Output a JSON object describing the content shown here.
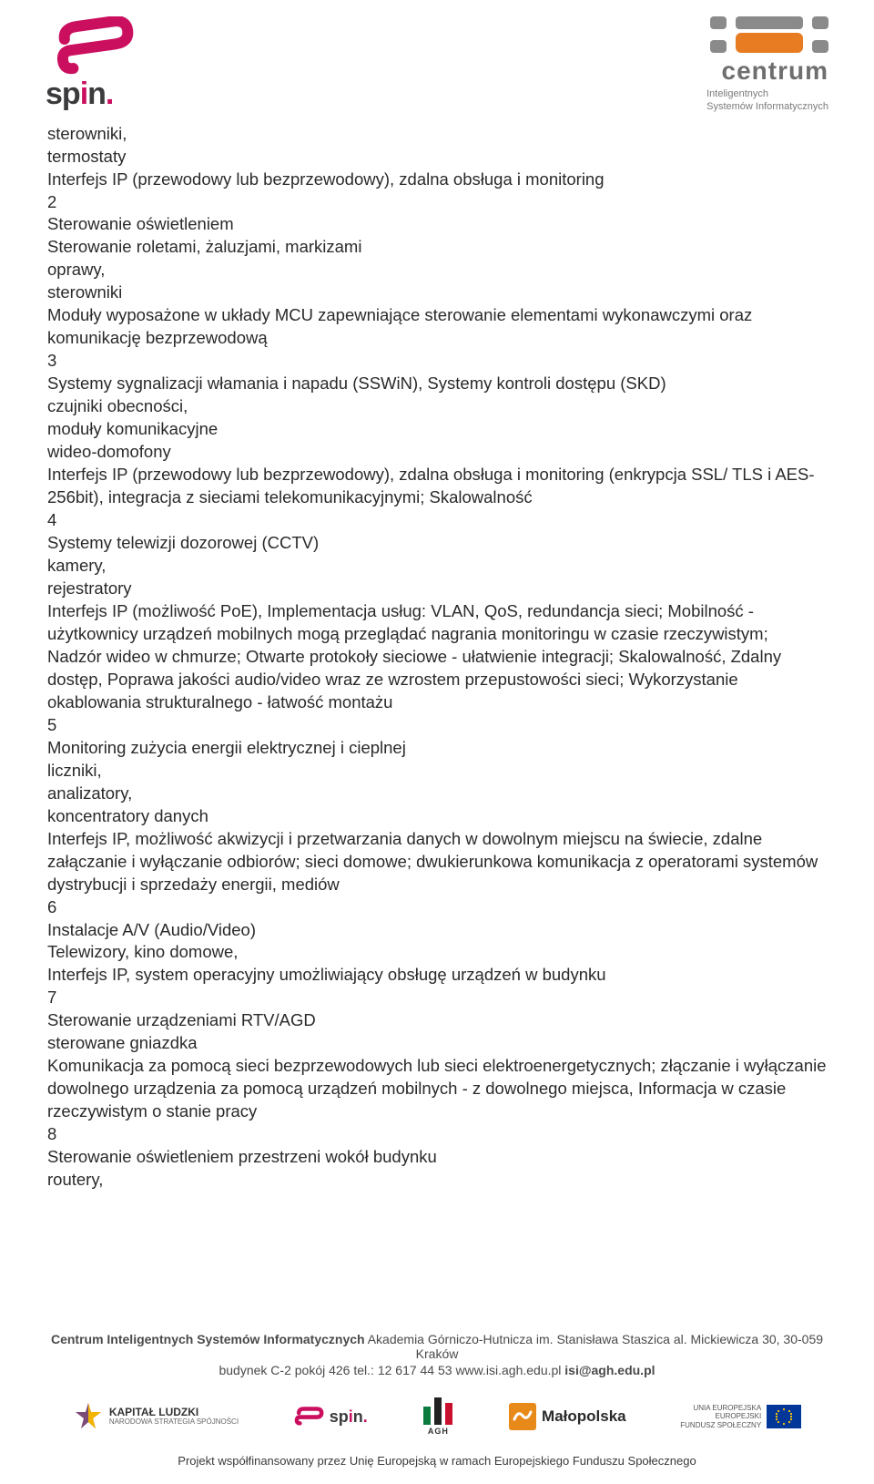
{
  "header": {
    "spin_brand": "spin.",
    "spin_colors": {
      "pink": "#cb0f5f",
      "gray": "#3b3b3d"
    },
    "centrum_brand": "centrum",
    "centrum_sub_line1": "Inteligentnych",
    "centrum_sub_line2": "Systemów Informatycznych",
    "centrum_colors": {
      "orange": "#e77c22",
      "gray": "#8a8a8a"
    }
  },
  "body": {
    "lines": [
      "sterowniki,",
      "termostaty",
      "Interfejs IP (przewodowy lub bezprzewodowy), zdalna obsługa i monitoring",
      "2",
      "Sterowanie oświetleniem",
      "Sterowanie roletami, żaluzjami, markizami",
      "oprawy,",
      "sterowniki",
      "Moduły wyposażone w układy MCU zapewniające sterowanie elementami wykonawczymi oraz komunikację bezprzewodową",
      "3",
      "Systemy sygnalizacji włamania i napadu (SSWiN), Systemy kontroli dostępu (SKD)",
      "czujniki obecności,",
      "moduły komunikacyjne",
      "wideo-domofony",
      "Interfejs IP (przewodowy lub bezprzewodowy), zdalna obsługa i monitoring (enkrypcja SSL/ TLS i AES-256bit), integracja z sieciami telekomunikacyjnymi; Skalowalność",
      "4",
      "Systemy telewizji dozorowej (CCTV)",
      "kamery,",
      "rejestratory",
      "Interfejs IP (możliwość PoE), Implementacja usług: VLAN, QoS, redundancja sieci; Mobilność - użytkownicy urządzeń mobilnych mogą przeglądać nagrania monitoringu w czasie rzeczywistym; Nadzór wideo w chmurze; Otwarte protokoły sieciowe - ułatwienie integracji; Skalowalność, Zdalny dostęp, Poprawa jakości audio/video wraz ze wzrostem przepustowości sieci; Wykorzystanie okablowania strukturalnego - łatwość montażu",
      "5",
      "Monitoring zużycia energii elektrycznej i cieplnej",
      "liczniki,",
      "analizatory,",
      "koncentratory danych",
      "Interfejs IP, możliwość akwizycji i przetwarzania danych w dowolnym miejscu na świecie, zdalne załączanie i wyłączanie odbiorów; sieci domowe; dwukierunkowa komunikacja z operatorami systemów dystrybucji i sprzedaży energii, mediów",
      "6",
      "Instalacje A/V (Audio/Video)",
      "Telewizory, kino domowe,",
      "Interfejs IP, system operacyjny umożliwiający obsługę urządzeń w budynku",
      "7",
      "Sterowanie urządzeniami RTV/AGD",
      "sterowane gniazdka",
      "Komunikacja za pomocą sieci bezprzewodowych lub sieci elektroenergetycznych; złączanie i wyłączanie dowolnego urządzenia za pomocą urządzeń mobilnych - z dowolnego miejsca, Informacja w czasie rzeczywistym o stanie pracy",
      "8",
      "Sterowanie oświetleniem przestrzeni wokół budynku",
      "routery,"
    ]
  },
  "footer": {
    "line1_bold": "Centrum Inteligentnych Systemów Informatycznych",
    "line1_rest": "  Akademia Górniczo-Hutnicza im. Stanisława Staszica  al. Mickiewicza 30, 30-059 Kraków",
    "line2_prefix": "budynek C-2 pokój 426  tel.: 12 617 44 53  www.isi.agh.edu.pl  ",
    "line2_bold": "isi@agh.edu.pl",
    "logos": {
      "kapital_title": "KAPITAŁ LUDZKI",
      "kapital_sub": "NARODOWA STRATEGIA SPÓJNOŚCI",
      "spin_text": "spin.",
      "agh_text": "AGH",
      "malopolska_text": "Małopolska",
      "eu_line1": "UNIA EUROPEJSKA",
      "eu_line2": "EUROPEJSKI",
      "eu_line3": "FUNDUSZ SPOŁECZNY"
    },
    "bottom": "Projekt współfinansowany przez Unię Europejską w ramach Europejskiego Funduszu Społecznego",
    "colors": {
      "kapital_red": "#d8232a",
      "kapital_yellow": "#f2b600",
      "kapital_blue": "#2f6fb7",
      "spin_pink": "#cb0f5f",
      "agh_green": "#0a7a3f",
      "agh_red": "#c8102e",
      "agh_black": "#222222",
      "malopolska_orange": "#e88a1a",
      "eu_blue": "#033699",
      "eu_yellow": "#ffcc00"
    }
  }
}
